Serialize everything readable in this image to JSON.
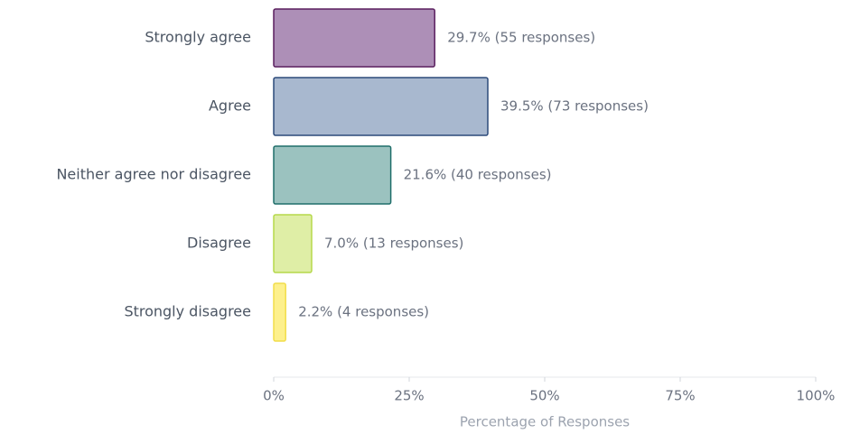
{
  "chart_data": {
    "type": "bar",
    "orientation": "horizontal",
    "categories": [
      "Strongly agree",
      "Agree",
      "Neither agree nor disagree",
      "Disagree",
      "Strongly disagree"
    ],
    "values": [
      29.7,
      39.5,
      21.6,
      7.0,
      2.2
    ],
    "value_labels": [
      "29.7% (55 responses)",
      "39.5% (73 responses)",
      "21.6% (40 responses)",
      "7.0% (13 responses)",
      "2.2% (4 responses)"
    ],
    "colors": [
      "#ad8fb7",
      "#a8b8cf",
      "#9bc2bf",
      "#dfeea6",
      "#fdf08c"
    ],
    "edgecolors": [
      "#5a1f5e",
      "#2c4a7a",
      "#1f6e6a",
      "#b5d84a",
      "#f2dd4a"
    ],
    "xlabel": "Percentage of Responses",
    "xlim": [
      0,
      100
    ],
    "xticks": [
      {
        "value": 0,
        "label": "0%"
      },
      {
        "value": 25,
        "label": "25%"
      },
      {
        "value": 50,
        "label": "50%"
      },
      {
        "value": 75,
        "label": "75%"
      },
      {
        "value": 100,
        "label": "100%"
      }
    ],
    "grid": false
  }
}
